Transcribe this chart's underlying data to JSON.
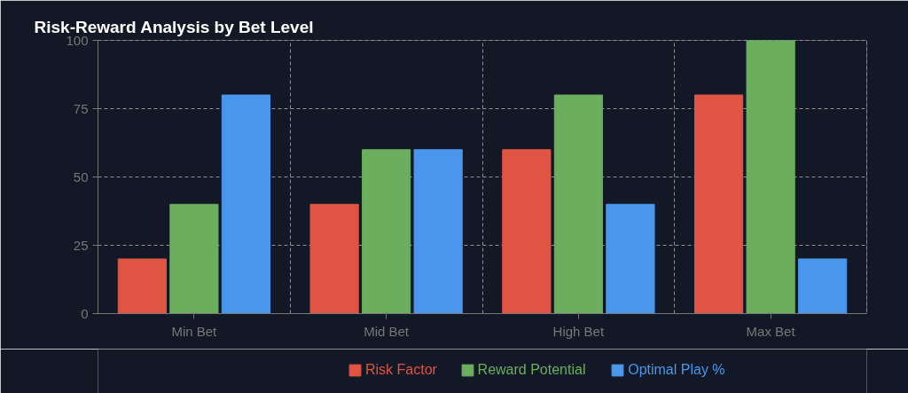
{
  "chart_data": {
    "type": "bar",
    "title": "Risk-Reward Analysis by Bet Level",
    "categories": [
      "Min Bet",
      "Mid Bet",
      "High Bet",
      "Max Bet"
    ],
    "series": [
      {
        "name": "Risk Factor",
        "color": "#e05443",
        "values": [
          20,
          40,
          60,
          80
        ]
      },
      {
        "name": "Reward Potential",
        "color": "#6aae5e",
        "values": [
          40,
          60,
          80,
          100
        ]
      },
      {
        "name": "Optimal Play %",
        "color": "#4a96ec",
        "values": [
          80,
          60,
          40,
          20
        ]
      }
    ],
    "ylim": [
      0,
      100
    ],
    "yticks": [
      0,
      25,
      50,
      75,
      100
    ],
    "grid": true,
    "legend": "bottom"
  }
}
